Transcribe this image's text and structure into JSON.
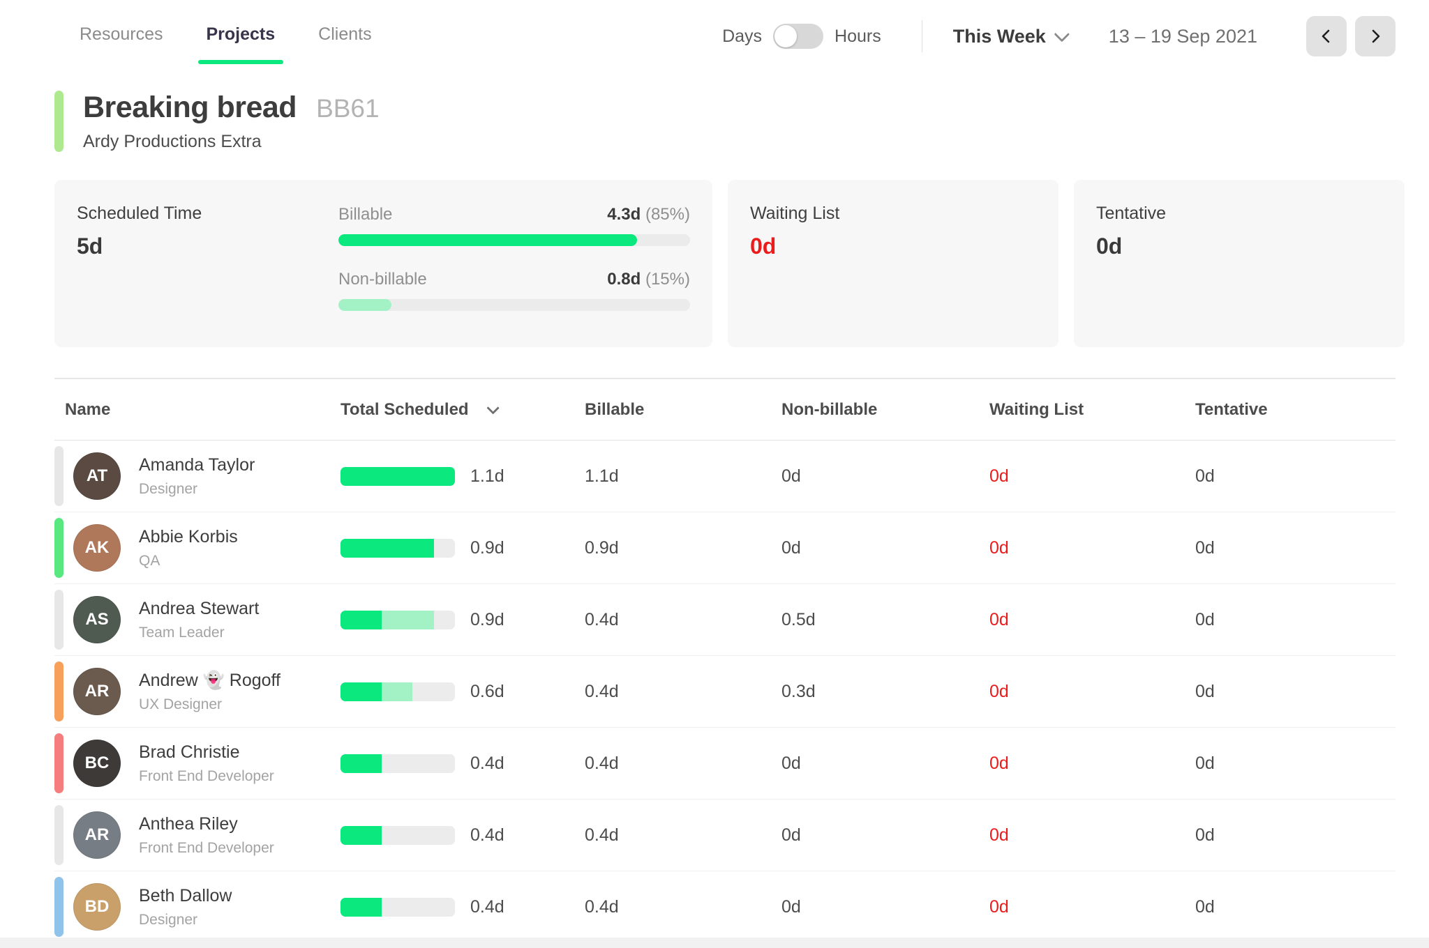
{
  "colors": {
    "green": "#0ae87e",
    "light_green": "#a2f2c6",
    "red": "#ea1c1c",
    "project_accent": "#aee98f"
  },
  "nav": {
    "tabs": [
      {
        "label": "Resources",
        "active": false
      },
      {
        "label": "Projects",
        "active": true
      },
      {
        "label": "Clients",
        "active": false
      }
    ],
    "unit_toggle": {
      "left": "Days",
      "right": "Hours",
      "selected": "Days"
    },
    "week_selector": "This Week",
    "date_range": "13 – 19 Sep 2021"
  },
  "project": {
    "name": "Breaking bread",
    "code": "BB61",
    "client": "Ardy Productions Extra"
  },
  "summary": {
    "scheduled_time": {
      "label": "Scheduled Time",
      "value": "5d"
    },
    "billable": {
      "label": "Billable",
      "value": "4.3d",
      "percent_text": "(85%)",
      "percent": 85
    },
    "non_billable": {
      "label": "Non-billable",
      "value": "0.8d",
      "percent_text": "(15%)",
      "percent": 15
    },
    "waiting_list": {
      "label": "Waiting List",
      "value": "0d"
    },
    "tentative": {
      "label": "Tentative",
      "value": "0d"
    }
  },
  "table": {
    "columns": {
      "name": "Name",
      "total_scheduled": "Total Scheduled",
      "billable": "Billable",
      "non_billable": "Non-billable",
      "waiting_list": "Waiting List",
      "tentative": "Tentative"
    },
    "rows": [
      {
        "name": "Amanda Taylor",
        "role": "Designer",
        "initials": "AT",
        "accent": "#e7e7e7",
        "avatar_color": "#5a4a42",
        "total": "1.1d",
        "billable": "1.1d",
        "non_billable": "0d",
        "waiting_list": "0d",
        "tentative": "0d",
        "bar": {
          "billable_pct": 100,
          "non_billable_pct": 0
        }
      },
      {
        "name": "Abbie Korbis",
        "role": "QA",
        "initials": "AK",
        "accent": "#58e87f",
        "avatar_color": "#b0785a",
        "total": "0.9d",
        "billable": "0.9d",
        "non_billable": "0d",
        "waiting_list": "0d",
        "tentative": "0d",
        "bar": {
          "billable_pct": 82,
          "non_billable_pct": 0
        }
      },
      {
        "name": "Andrea Stewart",
        "role": "Team Leader",
        "initials": "AS",
        "accent": "#e7e7e7",
        "avatar_color": "#4f5a50",
        "total": "0.9d",
        "billable": "0.4d",
        "non_billable": "0.5d",
        "waiting_list": "0d",
        "tentative": "0d",
        "bar": {
          "billable_pct": 36,
          "non_billable_pct": 46
        }
      },
      {
        "name": "Andrew 👻  Rogoff",
        "role": "UX Designer",
        "initials": "AR",
        "accent": "#f7a05c",
        "avatar_color": "#6b5a4e",
        "total": "0.6d",
        "billable": "0.4d",
        "non_billable": "0.3d",
        "waiting_list": "0d",
        "tentative": "0d",
        "bar": {
          "billable_pct": 36,
          "non_billable_pct": 27
        }
      },
      {
        "name": "Brad Christie",
        "role": "Front End Developer",
        "initials": "BC",
        "accent": "#f57d7d",
        "avatar_color": "#3e3a38",
        "total": "0.4d",
        "billable": "0.4d",
        "non_billable": "0d",
        "waiting_list": "0d",
        "tentative": "0d",
        "bar": {
          "billable_pct": 36,
          "non_billable_pct": 0
        }
      },
      {
        "name": "Anthea Riley",
        "role": "Front End Developer",
        "initials": "AR",
        "accent": "#e7e7e7",
        "avatar_color": "#777d85",
        "total": "0.4d",
        "billable": "0.4d",
        "non_billable": "0d",
        "waiting_list": "0d",
        "tentative": "0d",
        "bar": {
          "billable_pct": 36,
          "non_billable_pct": 0
        }
      },
      {
        "name": "Beth Dallow",
        "role": "Designer",
        "initials": "BD",
        "accent": "#8fc3ea",
        "avatar_color": "#c9a06a",
        "total": "0.4d",
        "billable": "0.4d",
        "non_billable": "0d",
        "waiting_list": "0d",
        "tentative": "0d",
        "bar": {
          "billable_pct": 36,
          "non_billable_pct": 0
        }
      }
    ]
  }
}
